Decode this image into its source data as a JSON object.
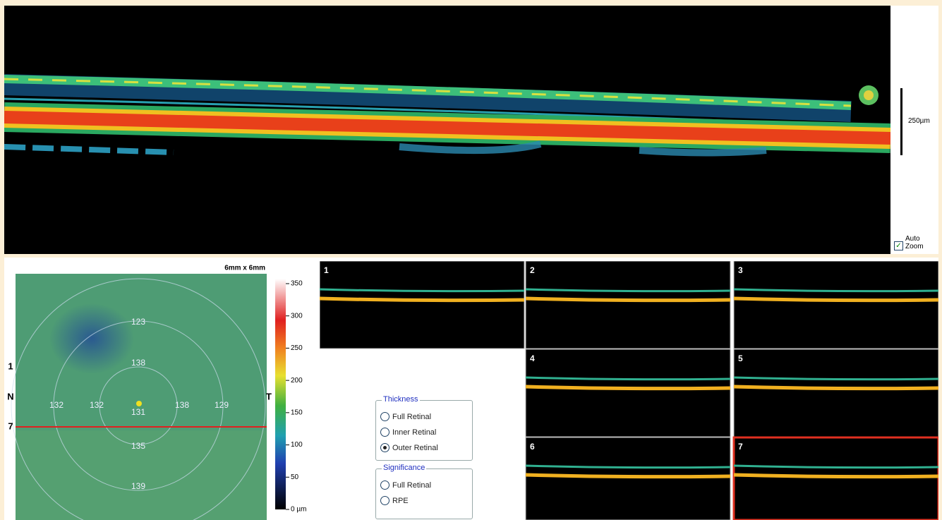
{
  "bscan": {
    "scale_label": "250µm",
    "auto_zoom": "Auto Zoom"
  },
  "thickness_map": {
    "size": "6mm x 6mm",
    "sectors": [
      "123",
      "138",
      "132",
      "132",
      "131",
      "138",
      "129",
      "135",
      "139"
    ],
    "left_labels": [
      "1",
      "N",
      "7"
    ],
    "right_label": "T"
  },
  "color_scale": {
    "labels": [
      "350",
      "300",
      "250",
      "200",
      "150",
      "100",
      "50",
      "0 µm"
    ]
  },
  "thumbnails": [
    "1",
    "2",
    "3",
    "4",
    "5",
    "6",
    "7"
  ],
  "thickness": {
    "title": "Thickness",
    "options": [
      "Full Retinal",
      "Inner Retinal",
      "Outer Retinal"
    ],
    "selected": 2
  },
  "significance": {
    "title": "Significance",
    "options": [
      "Full Retinal",
      "RPE"
    ]
  }
}
